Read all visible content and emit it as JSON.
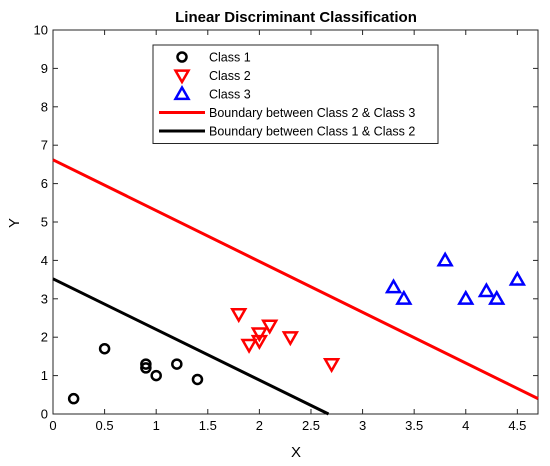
{
  "chart_data": {
    "type": "scatter",
    "title": "Linear Discriminant Classification",
    "xlabel": "X",
    "ylabel": "Y",
    "xlim": [
      0,
      4.7
    ],
    "ylim": [
      0,
      10
    ],
    "xticks": [
      "0",
      "0.5",
      "1",
      "1.5",
      "2",
      "2.5",
      "3",
      "3.5",
      "4",
      "4.5"
    ],
    "xtick_values": [
      0,
      0.5,
      1,
      1.5,
      2,
      2.5,
      3,
      3.5,
      4,
      4.5
    ],
    "yticks": [
      "0",
      "1",
      "2",
      "3",
      "4",
      "5",
      "6",
      "7",
      "8",
      "9",
      "10"
    ],
    "ytick_values": [
      0,
      1,
      2,
      3,
      4,
      5,
      6,
      7,
      8,
      9,
      10
    ],
    "grid": false,
    "legend_position": "top-center",
    "series": [
      {
        "name": "Class 1",
        "marker": "circle",
        "color": "#000000",
        "points": [
          [
            0.2,
            0.4
          ],
          [
            0.5,
            1.7
          ],
          [
            0.9,
            1.3
          ],
          [
            0.9,
            1.2
          ],
          [
            1.0,
            1.0
          ],
          [
            1.2,
            1.3
          ],
          [
            1.4,
            0.9
          ]
        ]
      },
      {
        "name": "Class 2",
        "marker": "triangle-down",
        "color": "#ff0000",
        "points": [
          [
            1.8,
            2.6
          ],
          [
            1.9,
            1.8
          ],
          [
            2.0,
            2.1
          ],
          [
            2.0,
            1.9
          ],
          [
            2.1,
            2.3
          ],
          [
            2.3,
            2.0
          ],
          [
            2.7,
            1.3
          ]
        ]
      },
      {
        "name": "Class 3",
        "marker": "triangle-up",
        "color": "#0000ff",
        "points": [
          [
            3.3,
            3.3
          ],
          [
            3.4,
            3.0
          ],
          [
            3.8,
            4.0
          ],
          [
            4.0,
            3.0
          ],
          [
            4.2,
            3.2
          ],
          [
            4.3,
            3.0
          ],
          [
            4.5,
            3.5
          ]
        ]
      }
    ],
    "lines": [
      {
        "name": "Boundary between Class 2 & Class 3",
        "color": "#ff0000",
        "points": [
          [
            0,
            6.62
          ],
          [
            4.7,
            0.4
          ]
        ]
      },
      {
        "name": "Boundary between Class 1 & Class 2",
        "color": "#000000",
        "points": [
          [
            0,
            3.52
          ],
          [
            2.67,
            0
          ]
        ]
      }
    ]
  }
}
